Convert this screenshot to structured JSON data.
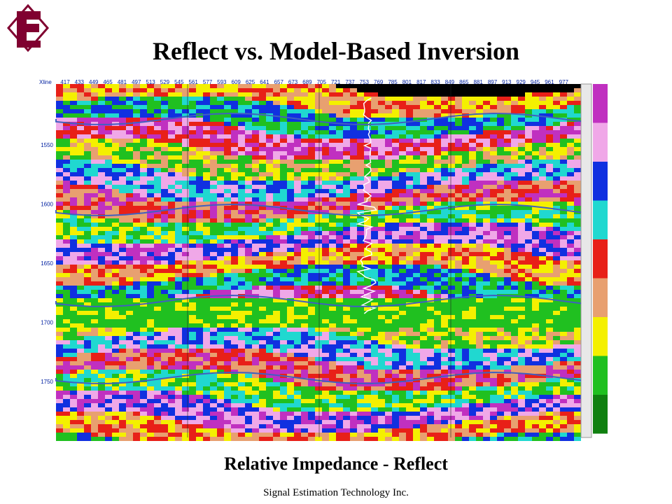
{
  "header": {
    "title": "Reflect vs. Model-Based Inversion"
  },
  "section": {
    "xline_label": "Xline",
    "xlines": [
      417,
      433,
      449,
      465,
      481,
      497,
      513,
      529,
      545,
      561,
      577,
      593,
      609,
      625,
      641,
      657,
      673,
      689,
      705,
      721,
      737,
      753,
      769,
      785,
      801,
      817,
      833,
      849,
      865,
      881,
      897,
      913,
      929,
      945,
      961,
      977
    ],
    "times": [
      1550,
      1600,
      1650,
      1700,
      1750
    ]
  },
  "caption": "Relative Impedance - Reflect",
  "footer": "Signal Estimation Technology Inc."
}
